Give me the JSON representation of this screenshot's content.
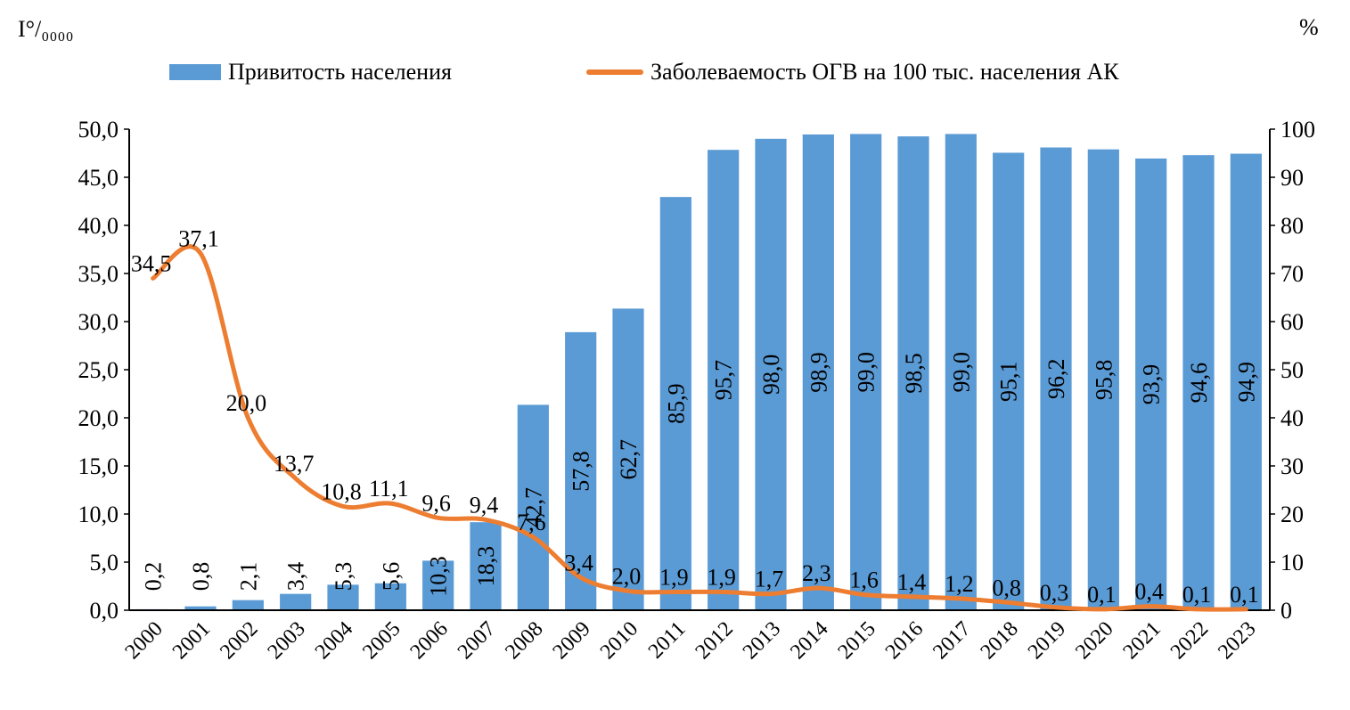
{
  "chart_data": {
    "type": "bar",
    "categories": [
      "2000",
      "2001",
      "2002",
      "2003",
      "2004",
      "2005",
      "2006",
      "2007",
      "2008",
      "2009",
      "2010",
      "2011",
      "2012",
      "2013",
      "2014",
      "2015",
      "2016",
      "2017",
      "2018",
      "2019",
      "2020",
      "2021",
      "2022",
      "2023"
    ],
    "series": [
      {
        "name": "Привитость населения",
        "type": "bar",
        "axis": "right",
        "color": "#5B9BD5",
        "values": [
          0.2,
          0.8,
          2.1,
          3.4,
          5.3,
          5.6,
          10.3,
          18.3,
          42.7,
          57.8,
          62.7,
          85.9,
          95.7,
          98.0,
          98.9,
          99.0,
          98.5,
          99.0,
          95.1,
          96.2,
          95.8,
          93.9,
          94.6,
          94.9
        ],
        "labels": [
          "0,2",
          "0,8",
          "2,1",
          "3,4",
          "5,3",
          "5,6",
          "10,3",
          "18,3",
          "42,7",
          "57,8",
          "62,7",
          "85,9",
          "95,7",
          "98,0",
          "98,9",
          "99,0",
          "98,5",
          "99,0",
          "95,1",
          "96,2",
          "95,8",
          "93,9",
          "94,6",
          "94,9"
        ]
      },
      {
        "name": "Заболеваемость ОГВ на 100 тыс. населения АК",
        "type": "line",
        "axis": "left",
        "color": "#ED7D31",
        "values": [
          34.5,
          37.1,
          20.0,
          13.7,
          10.8,
          11.1,
          9.6,
          9.4,
          7.6,
          3.4,
          2.0,
          1.9,
          1.9,
          1.7,
          2.3,
          1.6,
          1.4,
          1.2,
          0.8,
          0.3,
          0.1,
          0.4,
          0.1,
          0.1
        ],
        "labels": [
          "34,5",
          "37,1",
          "20,0",
          "13,7",
          "10,8",
          "11,1",
          "9,6",
          "9,4",
          "7,6",
          "3,4",
          "2,0",
          "1,9",
          "1,9",
          "1,7",
          "2,3",
          "1,6",
          "1,4",
          "1,2",
          "0,8",
          "0,3",
          "0,1",
          "0,4",
          "0,1",
          "0,1"
        ]
      }
    ],
    "left_axis": {
      "unit_label": "I°/₀₀₀₀",
      "ylim": [
        0,
        50
      ],
      "ticks": [
        "0,0",
        "5,0",
        "10,0",
        "15,0",
        "20,0",
        "25,0",
        "30,0",
        "35,0",
        "40,0",
        "45,0",
        "50,0"
      ]
    },
    "right_axis": {
      "unit_label": "%",
      "ylim": [
        0,
        100
      ],
      "ticks": [
        "0",
        "10",
        "20",
        "30",
        "40",
        "50",
        "60",
        "70",
        "80",
        "90",
        "100"
      ]
    },
    "legend_position": "top",
    "grid": false
  }
}
